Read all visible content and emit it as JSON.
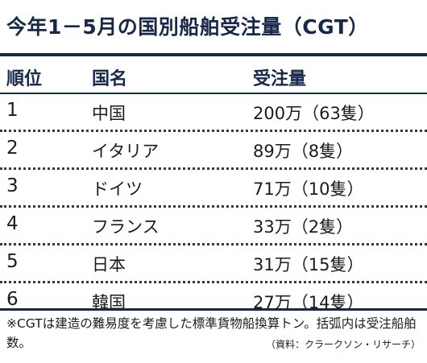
{
  "title": "今年1－5月の国別船舶受注量（CGT）",
  "table": {
    "headers": {
      "rank": "順位",
      "country": "国名",
      "volume": "受注量"
    },
    "rows": [
      {
        "rank": "1",
        "country": "中国",
        "volume": "200万（63隻）"
      },
      {
        "rank": "2",
        "country": "イタリア",
        "volume": "89万（8隻）"
      },
      {
        "rank": "3",
        "country": "ドイツ",
        "volume": "71万（10隻）"
      },
      {
        "rank": "4",
        "country": "フランス",
        "volume": "33万（2隻）"
      },
      {
        "rank": "5",
        "country": "日本",
        "volume": "31万（15隻）"
      },
      {
        "rank": "6",
        "country": "韓国",
        "volume": "27万（14隻）"
      }
    ]
  },
  "footnote": "※CGTは建造の難易度を考慮した標準貨物船換算トン。括弧内は受注船舶数。",
  "source": "（資料：クラークソン・リサーチ）",
  "colors": {
    "accent": "#16294b",
    "text": "#1b1b1b",
    "background": "#ffffff"
  }
}
